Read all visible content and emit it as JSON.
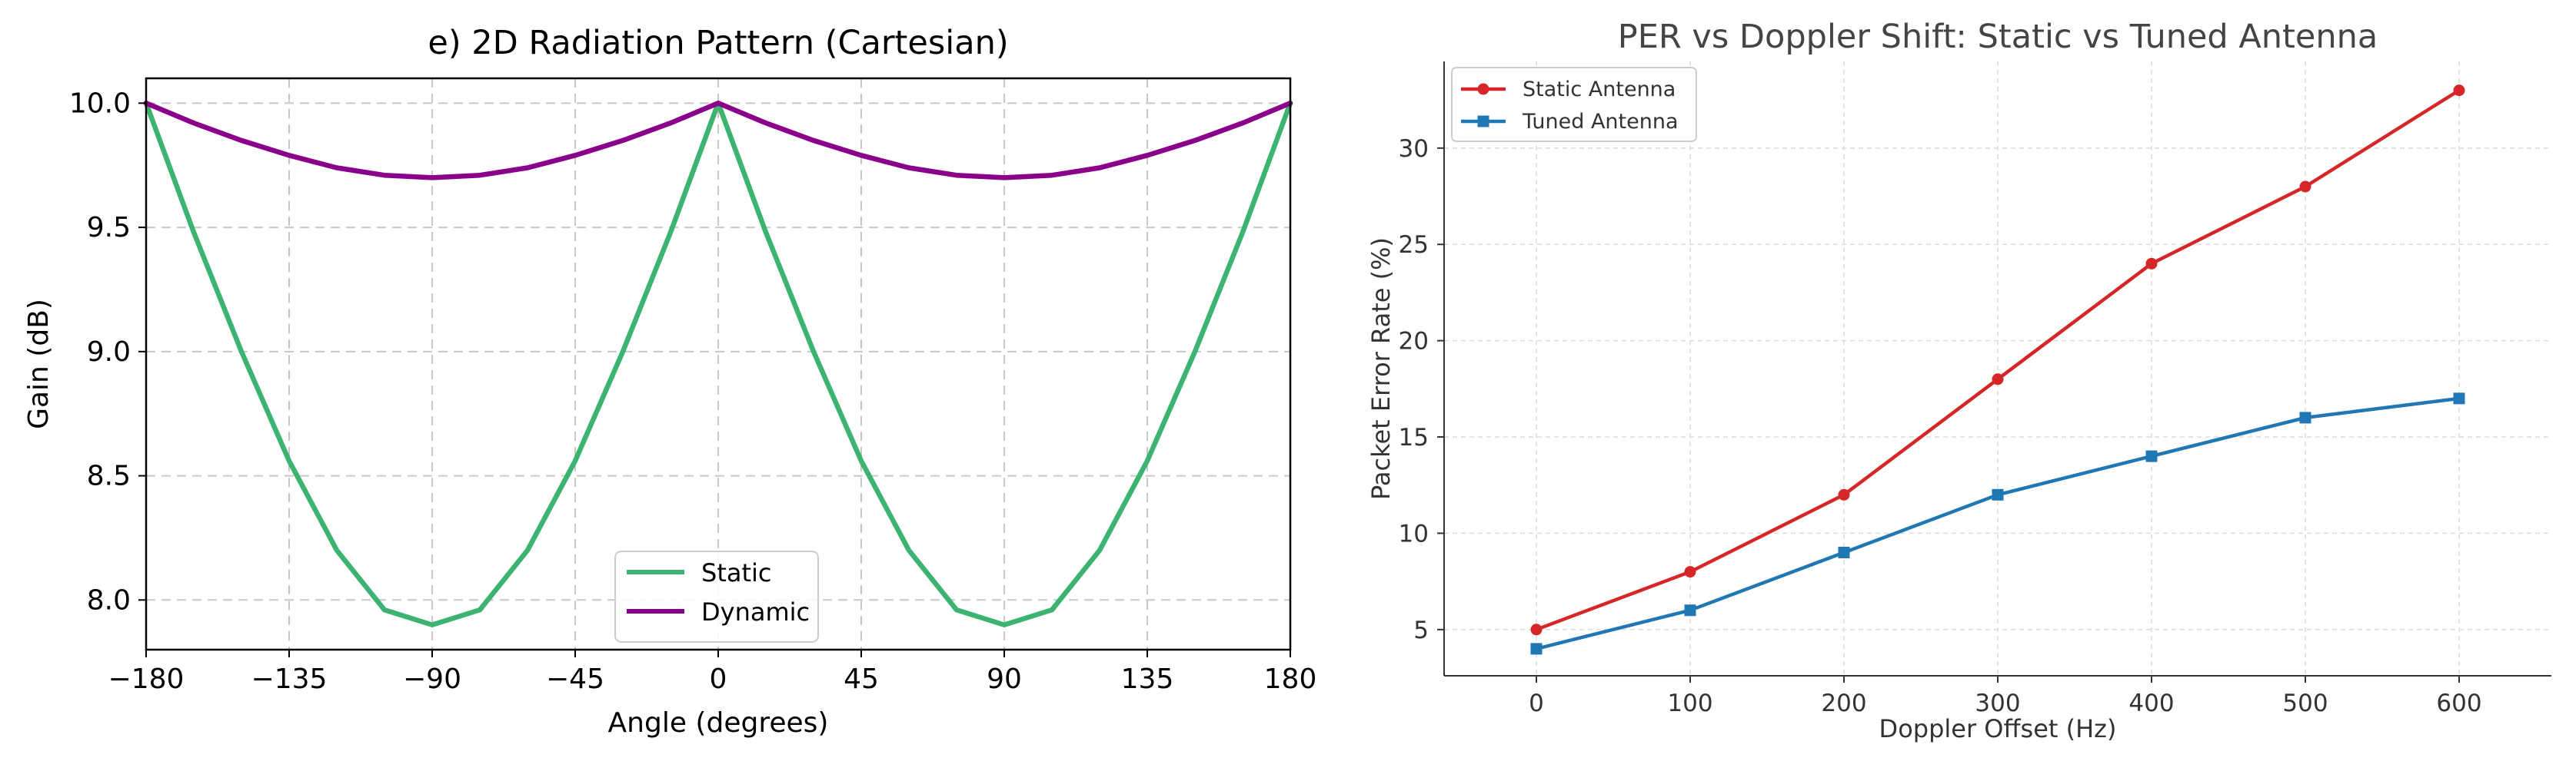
{
  "chart_data": [
    {
      "type": "line",
      "title": "e) 2D Radiation Pattern (Cartesian)",
      "xlabel": "Angle (degrees)",
      "ylabel": "Gain (dB)",
      "xlim": [
        -180,
        180
      ],
      "ylim": [
        7.8,
        10.1
      ],
      "xticks": [
        -180,
        -135,
        -90,
        -45,
        0,
        45,
        90,
        135,
        180
      ],
      "xtick_labels": [
        "−180",
        "−135",
        "−90",
        "−45",
        "0",
        "45",
        "90",
        "135",
        "180"
      ],
      "yticks": [
        8.0,
        8.5,
        9.0,
        9.5,
        10.0
      ],
      "ytick_labels": [
        "8.0",
        "8.5",
        "9.0",
        "9.5",
        "10.0"
      ],
      "grid": true,
      "legend_position": "bottom-center",
      "series": [
        {
          "name": "Static",
          "color": "#3cb371",
          "x": [
            -180,
            -165,
            -150,
            -135,
            -120,
            -105,
            -90,
            -75,
            -60,
            -45,
            -30,
            -15,
            0,
            15,
            30,
            45,
            60,
            75,
            90,
            105,
            120,
            135,
            150,
            165,
            180
          ],
          "values": [
            10.0,
            9.48,
            9.0,
            8.56,
            8.2,
            7.96,
            7.9,
            7.96,
            8.2,
            8.56,
            9.0,
            9.48,
            10.0,
            9.48,
            9.0,
            8.56,
            8.2,
            7.96,
            7.9,
            7.96,
            8.2,
            8.56,
            9.0,
            9.48,
            10.0
          ]
        },
        {
          "name": "Dynamic",
          "color": "#8b008b",
          "x": [
            -180,
            -165,
            -150,
            -135,
            -120,
            -105,
            -90,
            -75,
            -60,
            -45,
            -30,
            -15,
            0,
            15,
            30,
            45,
            60,
            75,
            90,
            105,
            120,
            135,
            150,
            165,
            180
          ],
          "values": [
            10.0,
            9.92,
            9.85,
            9.79,
            9.74,
            9.71,
            9.7,
            9.71,
            9.74,
            9.79,
            9.85,
            9.92,
            10.0,
            9.92,
            9.85,
            9.79,
            9.74,
            9.71,
            9.7,
            9.71,
            9.74,
            9.79,
            9.85,
            9.92,
            10.0
          ]
        }
      ]
    },
    {
      "type": "line",
      "title": "PER vs Doppler Shift: Static vs Tuned Antenna",
      "xlabel": "Doppler Offset (Hz)",
      "ylabel": "Packet Error Rate (%)",
      "xlim": [
        -60,
        660
      ],
      "ylim": [
        2.6,
        34.5
      ],
      "xticks": [
        0,
        100,
        200,
        300,
        400,
        500,
        600
      ],
      "xtick_labels": [
        "0",
        "100",
        "200",
        "300",
        "400",
        "500",
        "600"
      ],
      "yticks": [
        5,
        10,
        15,
        20,
        25,
        30
      ],
      "ytick_labels": [
        "5",
        "10",
        "15",
        "20",
        "25",
        "30"
      ],
      "grid": true,
      "legend_position": "top-left",
      "series": [
        {
          "name": "Static Antenna",
          "color": "#d62728",
          "marker": "circle",
          "x": [
            0,
            100,
            200,
            300,
            400,
            500,
            600
          ],
          "values": [
            5,
            8,
            12,
            18,
            24,
            28,
            33
          ]
        },
        {
          "name": "Tuned Antenna",
          "color": "#1f77b4",
          "marker": "square",
          "x": [
            0,
            100,
            200,
            300,
            400,
            500,
            600
          ],
          "values": [
            4,
            6,
            9,
            12,
            14,
            16,
            17
          ]
        }
      ]
    }
  ]
}
